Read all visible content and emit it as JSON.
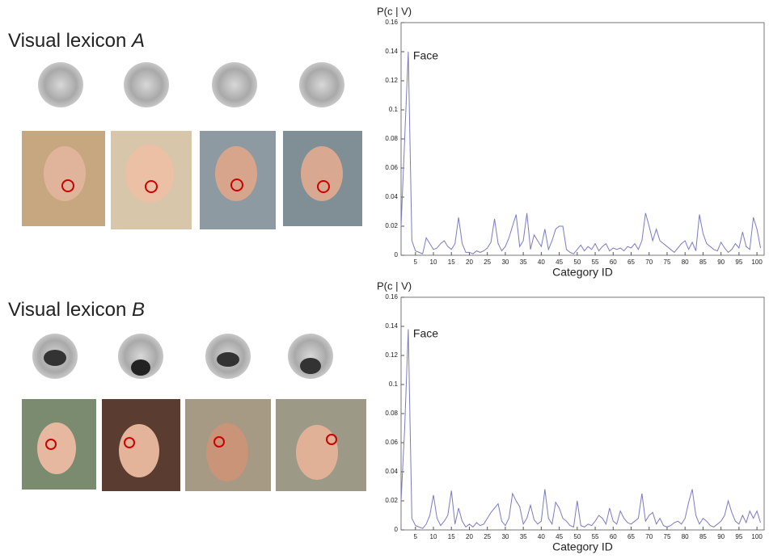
{
  "lexicons": [
    {
      "name": "Visual lexicon",
      "letter": "A"
    },
    {
      "name": "Visual lexicon",
      "letter": "B"
    }
  ],
  "chart_data": [
    {
      "type": "line",
      "ylabel": "P(c | V)",
      "xlabel": "Category ID",
      "annotation": "Face",
      "color": "#7b7bc0",
      "x": [
        1,
        2,
        3,
        4,
        5,
        6,
        7,
        8,
        9,
        10,
        11,
        12,
        13,
        14,
        15,
        16,
        17,
        18,
        19,
        20,
        21,
        22,
        23,
        24,
        25,
        26,
        27,
        28,
        29,
        30,
        31,
        32,
        33,
        34,
        35,
        36,
        37,
        38,
        39,
        40,
        41,
        42,
        43,
        44,
        45,
        46,
        47,
        48,
        49,
        50,
        51,
        52,
        53,
        54,
        55,
        56,
        57,
        58,
        59,
        60,
        61,
        62,
        63,
        64,
        65,
        66,
        67,
        68,
        69,
        70,
        71,
        72,
        73,
        74,
        75,
        76,
        77,
        78,
        79,
        80,
        81,
        82,
        83,
        84,
        85,
        86,
        87,
        88,
        89,
        90,
        91,
        92,
        93,
        94,
        95,
        96,
        97,
        98,
        99,
        100,
        101
      ],
      "values": [
        0.02,
        0.08,
        0.14,
        0.01,
        0.003,
        0.002,
        0.001,
        0.012,
        0.008,
        0.004,
        0.005,
        0.008,
        0.01,
        0.006,
        0.004,
        0.008,
        0.026,
        0.008,
        0.002,
        0.002,
        0.001,
        0.003,
        0.002,
        0.003,
        0.005,
        0.009,
        0.025,
        0.008,
        0.003,
        0.006,
        0.012,
        0.02,
        0.028,
        0.006,
        0.01,
        0.029,
        0.004,
        0.014,
        0.01,
        0.006,
        0.018,
        0.004,
        0.01,
        0.018,
        0.02,
        0.02,
        0.004,
        0.002,
        0.001,
        0.004,
        0.007,
        0.003,
        0.006,
        0.004,
        0.008,
        0.003,
        0.006,
        0.008,
        0.003,
        0.005,
        0.004,
        0.005,
        0.003,
        0.006,
        0.005,
        0.008,
        0.004,
        0.01,
        0.029,
        0.02,
        0.01,
        0.018,
        0.01,
        0.008,
        0.006,
        0.004,
        0.002,
        0.005,
        0.008,
        0.01,
        0.004,
        0.009,
        0.003,
        0.028,
        0.015,
        0.008,
        0.006,
        0.004,
        0.003,
        0.009,
        0.005,
        0.002,
        0.004,
        0.008,
        0.005,
        0.016,
        0.006,
        0.004,
        0.026,
        0.018,
        0.005
      ],
      "xlim": [
        1,
        102
      ],
      "xticks": [
        5,
        10,
        15,
        20,
        25,
        30,
        35,
        40,
        45,
        50,
        55,
        60,
        65,
        70,
        75,
        80,
        85,
        90,
        95,
        100
      ],
      "ylim": [
        0,
        0.16
      ],
      "yticks": [
        0,
        0.02,
        0.04,
        0.06,
        0.08,
        0.1,
        0.12,
        0.14,
        0.16
      ]
    },
    {
      "type": "line",
      "ylabel": "P(c | V)",
      "xlabel": "Category ID",
      "annotation": "Face",
      "color": "#7b7bc0",
      "x": [
        1,
        2,
        3,
        4,
        5,
        6,
        7,
        8,
        9,
        10,
        11,
        12,
        13,
        14,
        15,
        16,
        17,
        18,
        19,
        20,
        21,
        22,
        23,
        24,
        25,
        26,
        27,
        28,
        29,
        30,
        31,
        32,
        33,
        34,
        35,
        36,
        37,
        38,
        39,
        40,
        41,
        42,
        43,
        44,
        45,
        46,
        47,
        48,
        49,
        50,
        51,
        52,
        53,
        54,
        55,
        56,
        57,
        58,
        59,
        60,
        61,
        62,
        63,
        64,
        65,
        66,
        67,
        68,
        69,
        70,
        71,
        72,
        73,
        74,
        75,
        76,
        77,
        78,
        79,
        80,
        81,
        82,
        83,
        84,
        85,
        86,
        87,
        88,
        89,
        90,
        91,
        92,
        93,
        94,
        95,
        96,
        97,
        98,
        99,
        100,
        101
      ],
      "values": [
        0.02,
        0.07,
        0.138,
        0.008,
        0.003,
        0.002,
        0.001,
        0.004,
        0.01,
        0.024,
        0.008,
        0.003,
        0.006,
        0.01,
        0.027,
        0.004,
        0.015,
        0.006,
        0.002,
        0.004,
        0.002,
        0.005,
        0.003,
        0.004,
        0.008,
        0.012,
        0.015,
        0.018,
        0.006,
        0.003,
        0.008,
        0.025,
        0.02,
        0.016,
        0.004,
        0.008,
        0.017,
        0.007,
        0.004,
        0.006,
        0.028,
        0.008,
        0.004,
        0.019,
        0.015,
        0.008,
        0.006,
        0.003,
        0.002,
        0.02,
        0.003,
        0.002,
        0.004,
        0.003,
        0.006,
        0.01,
        0.008,
        0.004,
        0.015,
        0.006,
        0.004,
        0.013,
        0.008,
        0.005,
        0.004,
        0.006,
        0.008,
        0.025,
        0.006,
        0.01,
        0.012,
        0.004,
        0.008,
        0.003,
        0.002,
        0.003,
        0.005,
        0.006,
        0.004,
        0.008,
        0.019,
        0.028,
        0.01,
        0.004,
        0.008,
        0.006,
        0.003,
        0.002,
        0.004,
        0.006,
        0.01,
        0.02,
        0.012,
        0.006,
        0.004,
        0.01,
        0.005,
        0.013,
        0.008,
        0.013,
        0.005
      ],
      "xlim": [
        1,
        102
      ],
      "xticks": [
        5,
        10,
        15,
        20,
        25,
        30,
        35,
        40,
        45,
        50,
        55,
        60,
        65,
        70,
        75,
        80,
        85,
        90,
        95,
        100
      ],
      "ylim": [
        0,
        0.16
      ],
      "yticks": [
        0,
        0.02,
        0.04,
        0.06,
        0.08,
        0.1,
        0.12,
        0.14,
        0.16
      ]
    }
  ]
}
